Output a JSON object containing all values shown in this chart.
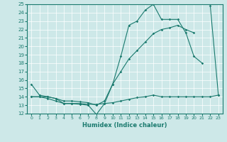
{
  "xlabel": "Humidex (Indice chaleur)",
  "x": [
    0,
    1,
    2,
    3,
    4,
    5,
    6,
    7,
    8,
    9,
    10,
    11,
    12,
    13,
    14,
    15,
    16,
    17,
    18,
    19,
    20,
    21,
    22,
    23
  ],
  "line1": [
    15.5,
    14.2,
    14.0,
    13.8,
    13.2,
    13.2,
    13.1,
    13.0,
    11.9,
    13.2,
    15.5,
    18.8,
    22.5,
    23.0,
    24.3,
    25.0,
    23.2,
    23.2,
    23.2,
    21.6,
    18.8,
    18.0,
    null,
    null
  ],
  "line2": [
    null,
    null,
    null,
    null,
    null,
    null,
    null,
    null,
    null,
    null,
    null,
    null,
    null,
    null,
    null,
    null,
    null,
    null,
    null,
    null,
    null,
    null,
    24.8,
    14.2
  ],
  "line3": [
    14.0,
    14.0,
    13.8,
    13.5,
    13.2,
    13.2,
    13.2,
    13.1,
    13.1,
    13.2,
    13.3,
    13.5,
    13.7,
    13.9,
    14.0,
    14.2,
    14.0,
    14.0,
    14.0,
    14.0,
    14.0,
    14.0,
    14.0,
    14.2
  ],
  "line4": [
    14.0,
    14.0,
    14.0,
    13.8,
    13.5,
    13.5,
    13.4,
    13.3,
    13.0,
    13.5,
    15.5,
    17.0,
    18.5,
    19.5,
    20.5,
    21.5,
    22.0,
    22.2,
    22.5,
    22.0,
    21.6,
    null,
    null,
    null
  ],
  "bg_color": "#cde8e8",
  "line_color": "#1a7a6e",
  "ylim": [
    12,
    25
  ],
  "xlim": [
    -0.5,
    23.5
  ],
  "yticks": [
    12,
    13,
    14,
    15,
    16,
    17,
    18,
    19,
    20,
    21,
    22,
    23,
    24,
    25
  ],
  "xticks": [
    0,
    1,
    2,
    3,
    4,
    5,
    6,
    7,
    8,
    9,
    10,
    11,
    12,
    13,
    14,
    15,
    16,
    17,
    18,
    19,
    20,
    21,
    22,
    23
  ]
}
